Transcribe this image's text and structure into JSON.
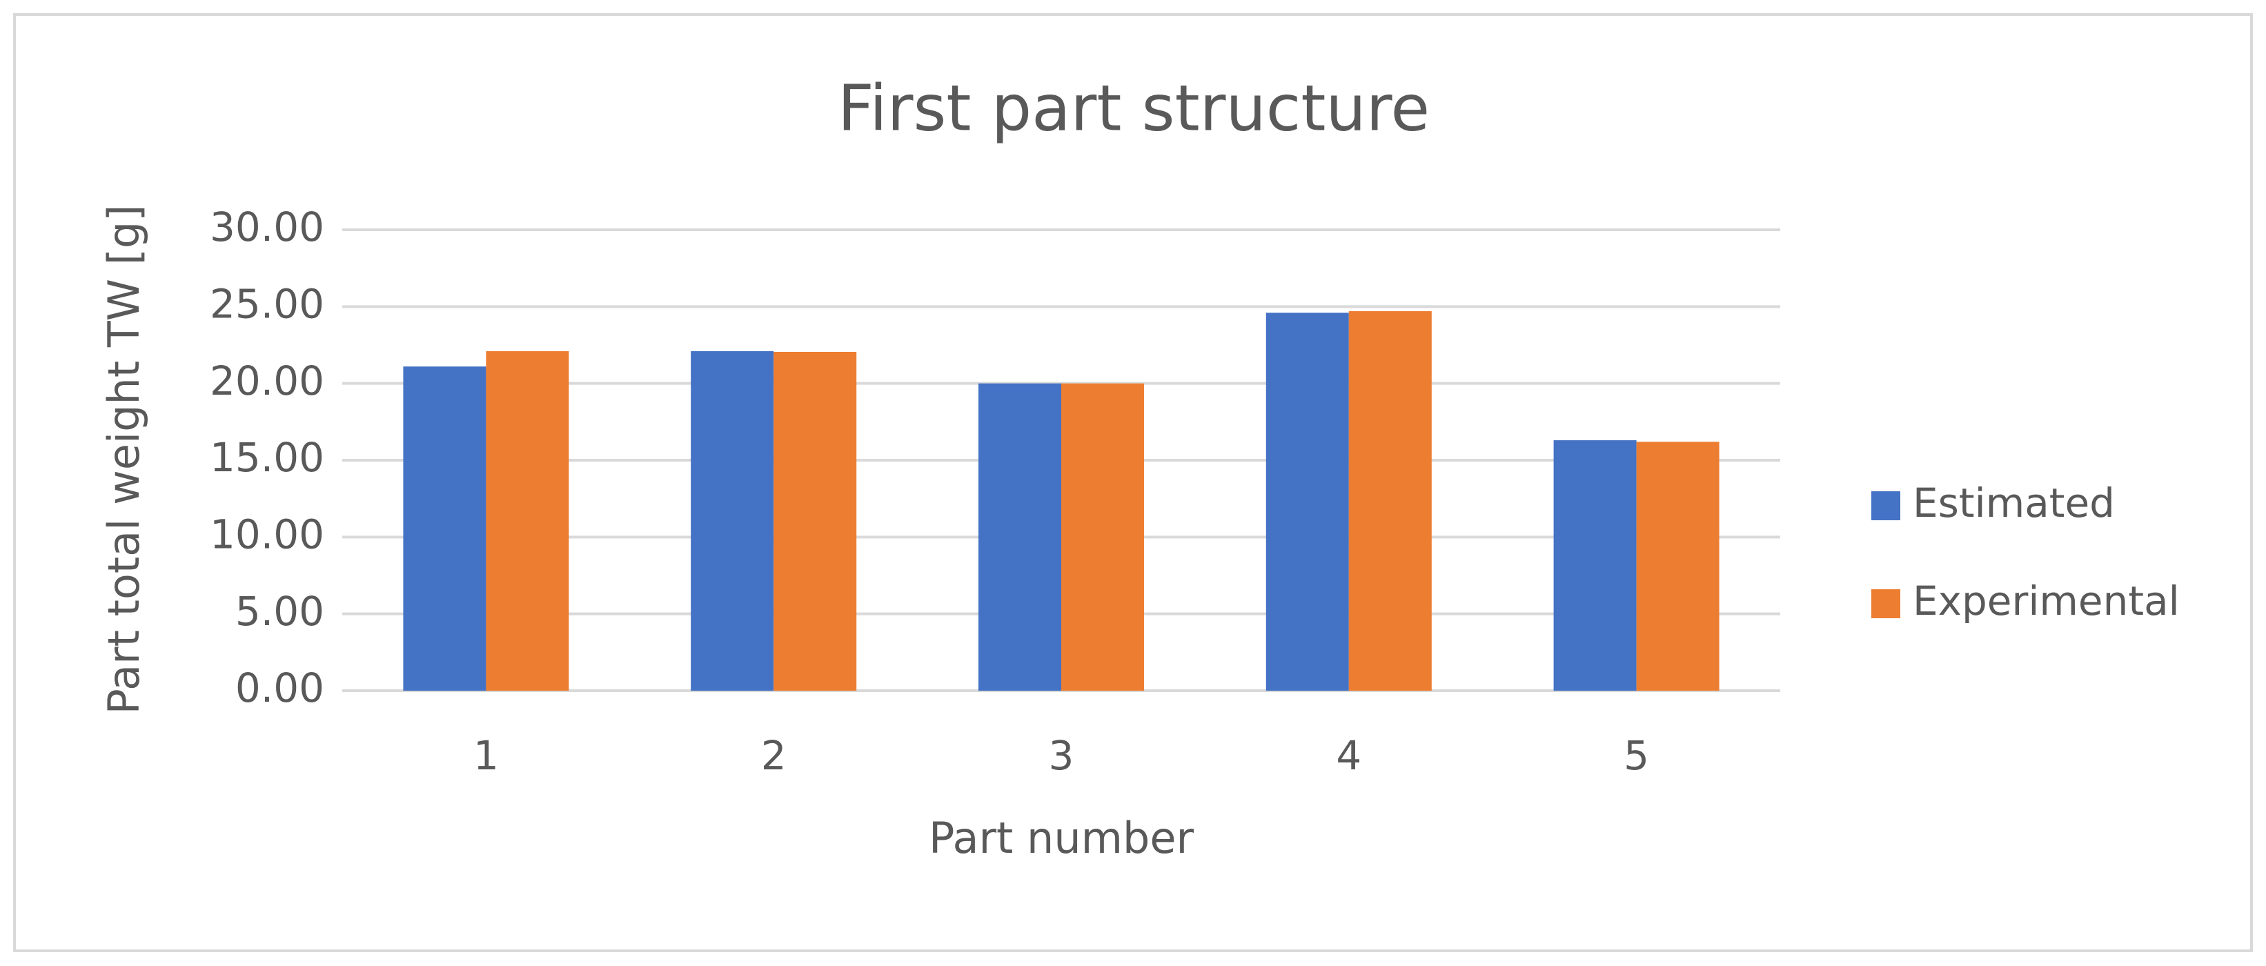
{
  "chart_data": {
    "type": "bar",
    "title": "First part structure",
    "x_label": "Part number",
    "y_label": "Part total weight TW [g]",
    "categories": [
      "1",
      "2",
      "3",
      "4",
      "5"
    ],
    "series": [
      {
        "name": "Estimated",
        "color": "#4472c4",
        "values": [
          21.1,
          22.1,
          20.0,
          24.6,
          16.3
        ]
      },
      {
        "name": "Experimental",
        "color": "#ed7d31",
        "values": [
          22.1,
          22.05,
          20.0,
          24.7,
          16.2
        ]
      }
    ],
    "ylim": [
      0,
      30
    ],
    "yticks": [
      {
        "value": 0,
        "label": "0.00"
      },
      {
        "value": 5,
        "label": "5.00"
      },
      {
        "value": 10,
        "label": "10.00"
      },
      {
        "value": 15,
        "label": "15.00"
      },
      {
        "value": 20,
        "label": "20.00"
      },
      {
        "value": 25,
        "label": "25.00"
      },
      {
        "value": 30,
        "label": "30.00"
      }
    ],
    "grid": true,
    "legend": "right"
  }
}
